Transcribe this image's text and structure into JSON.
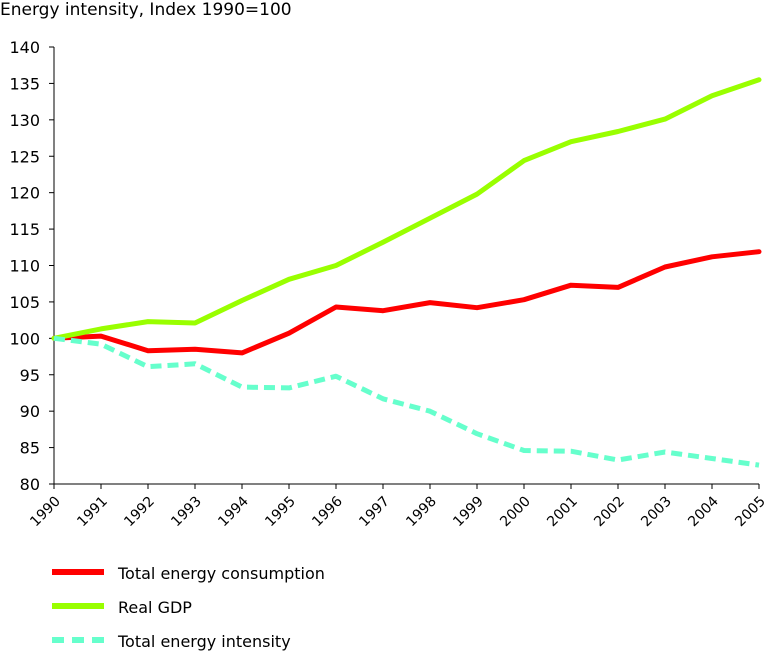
{
  "chart_data": {
    "type": "line",
    "title": "Energy intensity, Index 1990=100",
    "xlabel": "",
    "ylabel": "",
    "x": [
      "1990",
      "1991",
      "1992",
      "1993",
      "1994",
      "1995",
      "1996",
      "1997",
      "1998",
      "1999",
      "2000",
      "2001",
      "2002",
      "2003",
      "2004",
      "2005"
    ],
    "ylim": [
      80,
      140
    ],
    "yticks": [
      80,
      85,
      90,
      95,
      100,
      105,
      110,
      115,
      120,
      125,
      130,
      135,
      140
    ],
    "grid": false,
    "legend_position": "bottom",
    "series": [
      {
        "name": "Total energy consumption",
        "color": "#ff0000",
        "dash": "solid",
        "values": [
          100,
          100.3,
          98.3,
          98.5,
          98.0,
          100.7,
          104.3,
          103.8,
          104.9,
          104.2,
          105.3,
          107.3,
          107.0,
          109.8,
          111.2,
          111.9
        ]
      },
      {
        "name": "Real GDP",
        "color": "#99ff00",
        "dash": "solid",
        "values": [
          100,
          101.3,
          102.3,
          102.1,
          105.2,
          108.1,
          110.0,
          113.2,
          116.5,
          119.8,
          124.4,
          127.0,
          128.4,
          130.1,
          133.3,
          135.5
        ]
      },
      {
        "name": "Total energy intensity",
        "color": "#66ffcc",
        "dash": "dashed",
        "values": [
          100,
          99.2,
          96.1,
          96.5,
          93.3,
          93.2,
          94.8,
          91.7,
          90.0,
          86.9,
          84.6,
          84.5,
          83.3,
          84.4,
          83.5,
          82.6
        ]
      }
    ]
  }
}
